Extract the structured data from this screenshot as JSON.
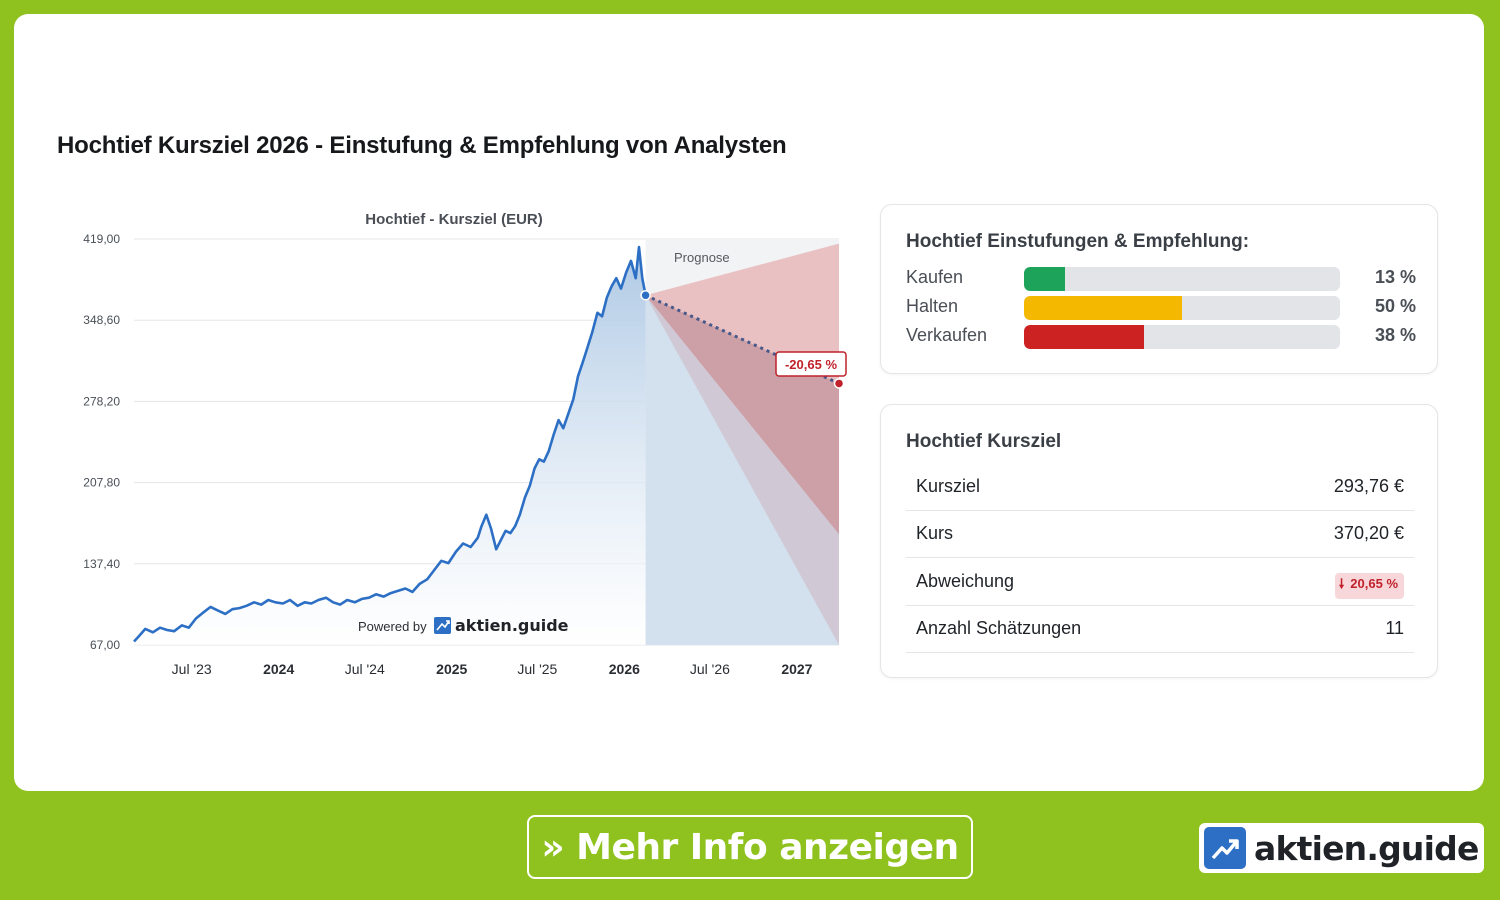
{
  "page_title": "Hochtief Kursziel 2026 - Einstufung & Empfehlung von Analysten",
  "colors": {
    "accent_green": "#8fc21e",
    "line_blue": "#2c6fc4",
    "forecast_red": "#c0212b",
    "buy": "#1ea35a",
    "hold": "#f5b800",
    "sell": "#cc2222"
  },
  "chart_data": {
    "type": "line",
    "title": "Hochtief - Kursziel (EUR)",
    "ylim": [
      67.0,
      419.0
    ],
    "y_ticks": [
      "419,00",
      "348,60",
      "278,20",
      "207,80",
      "137,40",
      "67,00"
    ],
    "y_tick_values": [
      419.0,
      348.6,
      278.2,
      207.8,
      137.4,
      67.0
    ],
    "xlim": [
      "2023-03-01",
      "2027-03-31"
    ],
    "x_ticks": [
      {
        "label": "Jul '23",
        "date": "2023-07-01",
        "bold": false
      },
      {
        "label": "2024",
        "date": "2024-01-01",
        "bold": true
      },
      {
        "label": "Jul '24",
        "date": "2024-07-01",
        "bold": false
      },
      {
        "label": "2025",
        "date": "2025-01-01",
        "bold": true
      },
      {
        "label": "Jul '25",
        "date": "2025-07-01",
        "bold": false
      },
      {
        "label": "2026",
        "date": "2026-01-01",
        "bold": true
      },
      {
        "label": "Jul '26",
        "date": "2026-07-01",
        "bold": false
      },
      {
        "label": "2027",
        "date": "2027-01-01",
        "bold": true
      }
    ],
    "grid": true,
    "series": [
      {
        "x": [
          "2023-03-01",
          "2023-03-10",
          "2023-03-25",
          "2023-04-10",
          "2023-04-25",
          "2023-05-10",
          "2023-05-25",
          "2023-06-10",
          "2023-06-25",
          "2023-07-10",
          "2023-07-25",
          "2023-08-10",
          "2023-08-25",
          "2023-09-10",
          "2023-09-25",
          "2023-10-10",
          "2023-10-25",
          "2023-11-10",
          "2023-11-25",
          "2023-12-10",
          "2023-12-25",
          "2024-01-10",
          "2024-01-25",
          "2024-02-10",
          "2024-02-25",
          "2024-03-10",
          "2024-03-25",
          "2024-04-10",
          "2024-04-25",
          "2024-05-10",
          "2024-05-25",
          "2024-06-10",
          "2024-06-25",
          "2024-07-10",
          "2024-07-25",
          "2024-08-10",
          "2024-08-25",
          "2024-09-10",
          "2024-09-25",
          "2024-10-10",
          "2024-10-25",
          "2024-11-10",
          "2024-11-25",
          "2024-12-10",
          "2024-12-25",
          "2025-01-10",
          "2025-01-25",
          "2025-02-10",
          "2025-02-25",
          "2025-03-05",
          "2025-03-15",
          "2025-03-25",
          "2025-04-05",
          "2025-04-15",
          "2025-04-25",
          "2025-05-05",
          "2025-05-15",
          "2025-05-25",
          "2025-06-05",
          "2025-06-15",
          "2025-06-25",
          "2025-07-05",
          "2025-07-15",
          "2025-07-25",
          "2025-08-05",
          "2025-08-15",
          "2025-08-25",
          "2025-09-05",
          "2025-09-15",
          "2025-09-25",
          "2025-10-05",
          "2025-10-15",
          "2025-10-25",
          "2025-11-05",
          "2025-11-15",
          "2025-11-25",
          "2025-12-05",
          "2025-12-15",
          "2025-12-25",
          "2026-01-05",
          "2026-01-15",
          "2026-01-25",
          "2026-02-01",
          "2026-02-08",
          "2026-02-15"
        ],
        "y": [
          70,
          74,
          81,
          78,
          82,
          80,
          79,
          84,
          82,
          90,
          95,
          100,
          97,
          94,
          98,
          99,
          101,
          104,
          102,
          106,
          104,
          103,
          106,
          101,
          104,
          103,
          106,
          108,
          104,
          102,
          106,
          104,
          107,
          108,
          111,
          109,
          112,
          114,
          116,
          113,
          120,
          124,
          132,
          140,
          138,
          148,
          155,
          152,
          160,
          170,
          180,
          168,
          150,
          158,
          166,
          164,
          170,
          180,
          195,
          205,
          220,
          228,
          226,
          235,
          250,
          262,
          255,
          268,
          280,
          300,
          312,
          325,
          338,
          355,
          352,
          368,
          378,
          385,
          376,
          390,
          400,
          385,
          412,
          385,
          370
        ]
      }
    ],
    "forecast": {
      "label": "Prognose",
      "start": {
        "date": "2026-02-15",
        "value": 370.2
      },
      "end_date": "2027-03-31",
      "mean_target": 293.76,
      "high_target": 415.0,
      "low_target": 163.0,
      "deviation_label": "-20,65 %"
    },
    "powered_by": "Powered by",
    "brand": "aktien.guide"
  },
  "ratings": {
    "title": "Hochtief Einstufungen & Empfehlung:",
    "items": [
      {
        "label": "Kaufen",
        "percent": 13,
        "percent_label": "13 %",
        "color": "#1ea35a"
      },
      {
        "label": "Halten",
        "percent": 50,
        "percent_label": "50 %",
        "color": "#f5b800"
      },
      {
        "label": "Verkaufen",
        "percent": 38,
        "percent_label": "38 %",
        "color": "#cc2222"
      }
    ]
  },
  "kursziel": {
    "title": "Hochtief Kursziel",
    "rows": [
      {
        "key": "Kursziel",
        "value": "293,76 €"
      },
      {
        "key": "Kurs",
        "value": "370,20 €"
      },
      {
        "key": "Abweichung",
        "value": "20,65 %",
        "badge": true
      },
      {
        "key": "Anzahl Schätzungen",
        "value": "11"
      }
    ]
  },
  "cta": {
    "label": "» Mehr Info anzeigen"
  },
  "footer_brand": "aktien.guide"
}
